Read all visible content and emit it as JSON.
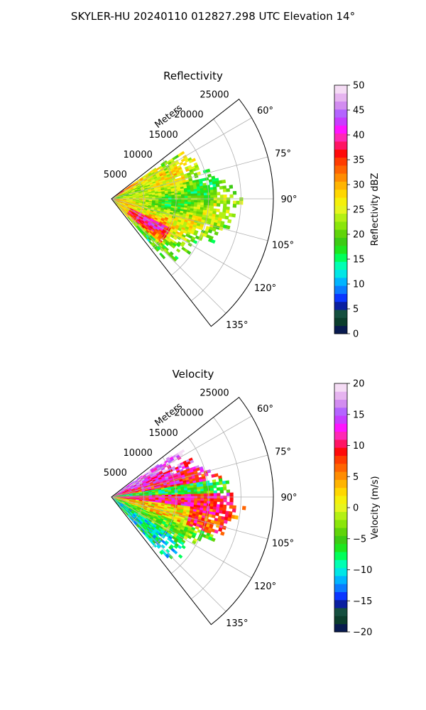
{
  "figure_title": "SKYLER-HU  20240110  012827.298 UTC Elevation 14°",
  "colors": {
    "grid": "#b0b0b0",
    "frame": "#000000"
  },
  "chart_data": [
    {
      "type": "heatmap",
      "title": "Reflectivity",
      "projection": "polar sector",
      "range_label": "Meters",
      "range_ticks": [
        5000,
        10000,
        15000,
        20000,
        25000
      ],
      "range_tick_labels": [
        "5000",
        "10000",
        "15000",
        "20000",
        "25000"
      ],
      "azimuth_ticks": [
        60,
        75,
        90,
        105,
        120,
        135
      ],
      "azimuth_tick_labels": [
        "60°",
        "75°",
        "90°",
        "105°",
        "120°",
        "135°"
      ],
      "azimuth_range": [
        52,
        142
      ],
      "grid": true,
      "colorbar": {
        "label": "Reflectivity dBZ",
        "range": [
          0,
          50
        ],
        "ticks": [
          0,
          5,
          10,
          15,
          20,
          25,
          30,
          35,
          40,
          45,
          50
        ],
        "tick_labels": [
          "0",
          "5",
          "10",
          "15",
          "20",
          "25",
          "30",
          "35",
          "40",
          "45",
          "50"
        ],
        "colors": [
          "#081a4f",
          "#0b3d2c",
          "#154f3f",
          "#0a1fa0",
          "#0a36ff",
          "#0a7bff",
          "#00b4ff",
          "#00e6e6",
          "#00ffb3",
          "#00ff5a",
          "#1ee61e",
          "#3ccb14",
          "#60d40a",
          "#8ae60a",
          "#b4f014",
          "#e6f51e",
          "#f5f00a",
          "#ffd700",
          "#ffb400",
          "#ff8c00",
          "#ff6400",
          "#ff3c00",
          "#ff0a0a",
          "#ff1464",
          "#ff28b4",
          "#ff14ff",
          "#c83cff",
          "#b464ff",
          "#d28cf0",
          "#e6b4f0",
          "#f5dcf5"
        ]
      },
      "echo_sector": {
        "azimuth_range": [
          55,
          138
        ],
        "max_range_m": 19500
      }
    },
    {
      "type": "heatmap",
      "title": "Velocity",
      "projection": "polar sector",
      "range_label": "Meters",
      "range_ticks": [
        5000,
        10000,
        15000,
        20000,
        25000
      ],
      "range_tick_labels": [
        "5000",
        "10000",
        "15000",
        "20000",
        "25000"
      ],
      "azimuth_ticks": [
        60,
        75,
        90,
        105,
        120,
        135
      ],
      "azimuth_tick_labels": [
        "60°",
        "75°",
        "90°",
        "105°",
        "120°",
        "135°"
      ],
      "azimuth_range": [
        52,
        142
      ],
      "grid": true,
      "colorbar": {
        "label": "Velocity (m/s)",
        "range": [
          -20,
          20
        ],
        "ticks": [
          -20,
          -15,
          -10,
          -5,
          0,
          5,
          10,
          15,
          20
        ],
        "tick_labels": [
          "−20",
          "−15",
          "−10",
          "−5",
          "0",
          "5",
          "10",
          "15",
          "20"
        ],
        "colors": [
          "#081a4f",
          "#0b3d2c",
          "#154f3f",
          "#0a1fa0",
          "#0a36ff",
          "#0a7bff",
          "#00b4ff",
          "#00e6e6",
          "#00ffb3",
          "#00ff5a",
          "#1ee61e",
          "#3ccb14",
          "#60d40a",
          "#8ae60a",
          "#b4f014",
          "#e6f51e",
          "#f5f00a",
          "#ffd700",
          "#ffb400",
          "#ff8c00",
          "#ff6400",
          "#ff3c00",
          "#ff0a0a",
          "#ff1464",
          "#ff28b4",
          "#ff14ff",
          "#c83cff",
          "#b464ff",
          "#d28cf0",
          "#e6b4f0",
          "#f5dcf5"
        ]
      },
      "echo_sector": {
        "azimuth_range": [
          55,
          138
        ],
        "max_range_m": 19500
      }
    }
  ]
}
